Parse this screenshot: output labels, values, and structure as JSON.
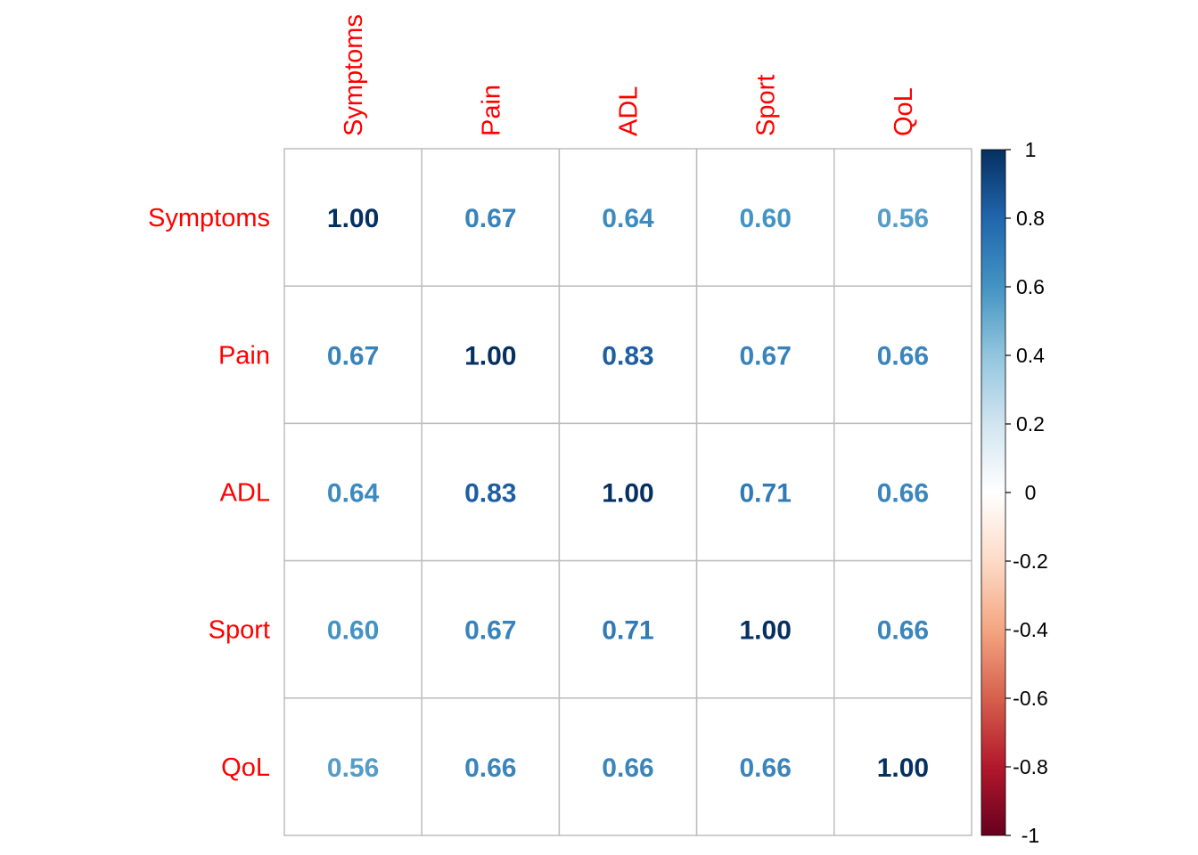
{
  "chart_data": {
    "type": "heatmap",
    "title": "",
    "variables": [
      "Symptoms",
      "Pain",
      "ADL",
      "Sport",
      "QoL"
    ],
    "matrix": [
      [
        1.0,
        0.67,
        0.64,
        0.6,
        0.56
      ],
      [
        0.67,
        1.0,
        0.83,
        0.67,
        0.66
      ],
      [
        0.64,
        0.83,
        1.0,
        0.71,
        0.66
      ],
      [
        0.6,
        0.67,
        0.71,
        1.0,
        0.66
      ],
      [
        0.56,
        0.66,
        0.66,
        0.66,
        1.0
      ]
    ],
    "value_labels": [
      [
        "1.00",
        "0.67",
        "0.64",
        "0.60",
        "0.56"
      ],
      [
        "0.67",
        "1.00",
        "0.83",
        "0.67",
        "0.66"
      ],
      [
        "0.64",
        "0.83",
        "1.00",
        "0.71",
        "0.66"
      ],
      [
        "0.60",
        "0.67",
        "0.71",
        "1.00",
        "0.66"
      ],
      [
        "0.56",
        "0.66",
        "0.66",
        "0.66",
        "1.00"
      ]
    ],
    "color_scale": {
      "range": [
        -1,
        1
      ],
      "tick_values": [
        1,
        0.8,
        0.6,
        0.4,
        0.2,
        0,
        -0.2,
        -0.4,
        -0.6,
        -0.8,
        -1
      ],
      "tick_labels": [
        "1",
        "0.8",
        "0.6",
        "0.4",
        "0.2",
        "0",
        "-0.2",
        "-0.4",
        "-0.6",
        "-0.8",
        "-1"
      ],
      "stops": [
        "#67001F",
        "#B2182B",
        "#D6604D",
        "#F4A582",
        "#FDDBC7",
        "#FFFFFF",
        "#D1E5F0",
        "#92C5DE",
        "#4393C3",
        "#2166AC",
        "#053061"
      ]
    },
    "label_color": "#FF0000",
    "grid_color": "#BEBEBE",
    "legend_position": "right"
  }
}
